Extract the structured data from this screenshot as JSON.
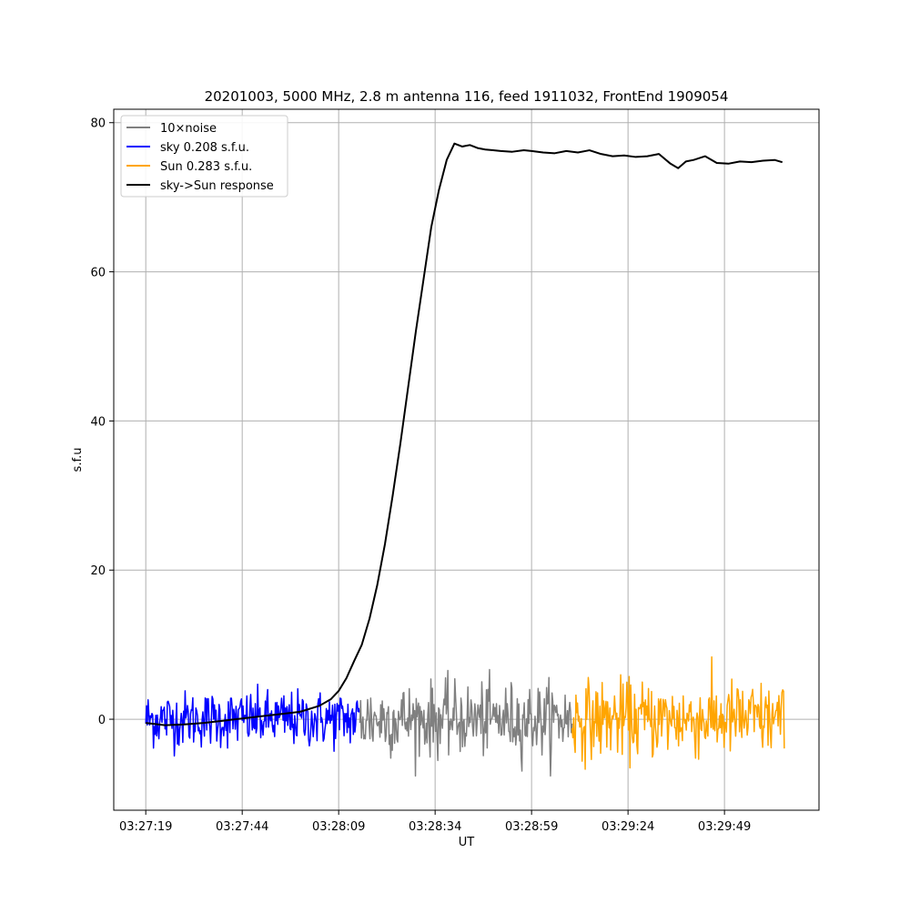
{
  "chart_data": {
    "type": "line",
    "title": "20201003, 5000 MHz, 2.8 m antenna 116, feed 1911032, FrontEnd 1909054",
    "xlabel": "UT",
    "ylabel": "s.f.u",
    "x_unit": "seconds",
    "xlim": [
      -8.3,
      174.5
    ],
    "ylim": [
      -12.2,
      81.8
    ],
    "x_ticks": [
      {
        "value": 0,
        "label": "03:27:19"
      },
      {
        "value": 25,
        "label": "03:27:44"
      },
      {
        "value": 50,
        "label": "03:28:09"
      },
      {
        "value": 75,
        "label": "03:28:34"
      },
      {
        "value": 100,
        "label": "03:28:59"
      },
      {
        "value": 125,
        "label": "03:29:24"
      },
      {
        "value": 150,
        "label": "03:29:49"
      }
    ],
    "y_ticks": [
      0,
      20,
      40,
      60,
      80
    ],
    "grid": true,
    "legend_position": "top-left",
    "series": [
      {
        "name": "10×noise",
        "color": "#808080",
        "kind": "noise",
        "x_range": [
          55.5,
          110.5
        ],
        "mean": 0,
        "amplitude": 3.2,
        "peak": 8.0
      },
      {
        "name": "sky 0.208 s.f.u.",
        "color": "#0000ff",
        "kind": "noise",
        "x_range": [
          0,
          55.5
        ],
        "mean": 0,
        "amplitude": 2.5,
        "peak": 8.2
      },
      {
        "name": "Sun 0.283 s.f.u.",
        "color": "#ffa500",
        "kind": "noise",
        "x_range": [
          110.5,
          165.5
        ],
        "mean": 0,
        "amplitude": 3.4,
        "peak": 9.0
      },
      {
        "name": "sky->Sun response",
        "color": "#000000",
        "kind": "line",
        "x": [
          0,
          5,
          10,
          15,
          20,
          25,
          30,
          35,
          40,
          45,
          48,
          50,
          52,
          54,
          56,
          58,
          60,
          62,
          64,
          66,
          68,
          70,
          72,
          74,
          76,
          78,
          80,
          82,
          84,
          86,
          88,
          90,
          92,
          95,
          98,
          100,
          103,
          106,
          109,
          112,
          115,
          118,
          121,
          124,
          127,
          130,
          133,
          136,
          138,
          140,
          142,
          145,
          148,
          151,
          154,
          157,
          160,
          163,
          165
        ],
        "y": [
          -0.5,
          -0.8,
          -0.7,
          -0.5,
          -0.2,
          0.1,
          0.4,
          0.7,
          1.0,
          1.8,
          2.7,
          3.8,
          5.5,
          7.8,
          10.0,
          13.5,
          18.0,
          23.5,
          30.0,
          37.0,
          44.5,
          52.0,
          59.0,
          66.0,
          71.0,
          75.0,
          77.2,
          76.8,
          77.0,
          76.6,
          76.4,
          76.3,
          76.2,
          76.1,
          76.3,
          76.2,
          76.0,
          75.9,
          76.2,
          76.0,
          76.3,
          75.8,
          75.5,
          75.6,
          75.4,
          75.5,
          75.8,
          74.5,
          73.9,
          74.8,
          75.0,
          75.5,
          74.6,
          74.5,
          74.8,
          74.7,
          74.9,
          75.0,
          74.7
        ]
      }
    ]
  }
}
